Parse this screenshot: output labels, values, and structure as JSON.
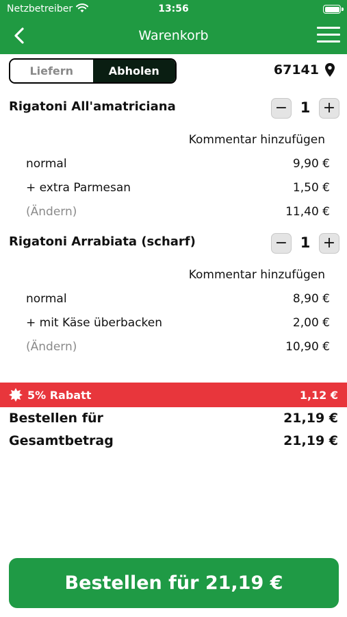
{
  "status_bar": {
    "carrier": "Netzbetreiber",
    "time": "13:56"
  },
  "nav": {
    "title": "Warenkorb"
  },
  "mode_toggle": {
    "deliver_label": "Liefern",
    "pickup_label": "Abholen",
    "selected": "Abholen"
  },
  "location": {
    "zip": "67141"
  },
  "cart": {
    "items": [
      {
        "name": "Rigatoni All'amatriciana",
        "quantity": "1",
        "comment_label": "Kommentar hinzufügen",
        "size_label": "normal",
        "size_price": "9,90 €",
        "extra_label": "+ extra Parmesan",
        "extra_price": "1,50 €",
        "change_label": "(Ändern)",
        "subtotal": "11,40 €"
      },
      {
        "name": "Rigatoni Arrabiata (scharf)",
        "quantity": "1",
        "comment_label": "Kommentar hinzufügen",
        "size_label": "normal",
        "size_price": "8,90 €",
        "extra_label": "+ mit Käse überbacken",
        "extra_price": "2,00 €",
        "change_label": "(Ändern)",
        "subtotal": "10,90 €"
      }
    ],
    "stepper": {
      "minus": "−",
      "plus": "+"
    }
  },
  "discount": {
    "label": "5% Rabatt",
    "amount": "1,12 €",
    "color": "#e8363c"
  },
  "summary": {
    "order_for_label": "Bestellen für",
    "order_for_value": "21,19 €",
    "total_label": "Gesamtbetrag",
    "total_value": "21,19 €"
  },
  "checkout_button": {
    "label": "Bestellen für 21,19 €"
  },
  "theme": {
    "brand_green": "#209a42",
    "dark": "#0a1e12"
  }
}
